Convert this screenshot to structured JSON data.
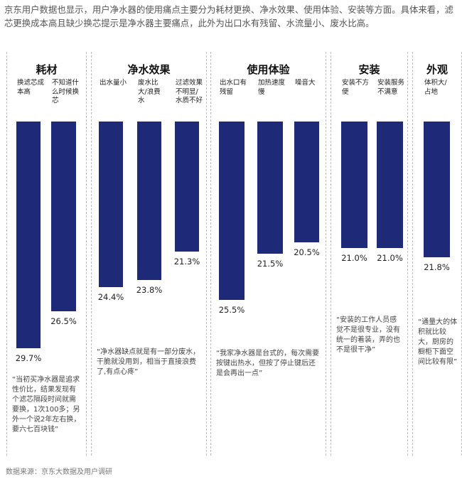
{
  "intro": "京东用户数据也显示，用户净水器的使用痛点主要分为耗材更换、净水效果、使用体验、安装等方面。具体来看，滤芯更换成本高且缺少换芯提示是净水器主要痛点，此外为出口水有残留、水流量小、废水比高。",
  "source": "数据来源：京东大数据及用户调研",
  "colors": {
    "bar": "#1e2a78",
    "frame": "#bdbdbd"
  },
  "chart_data": {
    "type": "bar",
    "groups": [
      {
        "title": "耗材",
        "bars": [
          {
            "label": "换滤芯成本高",
            "value": 29.7
          },
          {
            "label": "不知道什么时候换芯",
            "value": 26.5
          }
        ],
        "quote": "“当初买净水器是追求性价比，结果发现有个滤芯隔段时间就需要换，1次100多；另外一个说2年左右换，要六七百块钱”"
      },
      {
        "title": "净水效果",
        "bars": [
          {
            "label": "出水量小",
            "value": 24.4
          },
          {
            "label": "废水比大/浪费水",
            "value": 23.8
          },
          {
            "label": "过滤效果不明显/水质不好",
            "value": 21.3
          }
        ],
        "quote": "“净水器缺点就是有一部分废水，干脆就没用到，相当于直接浪费了,有点心疼”"
      },
      {
        "title": "使用体验",
        "bars": [
          {
            "label": "出水口有残留",
            "value": 25.5
          },
          {
            "label": "加热速度慢",
            "value": 21.5
          },
          {
            "label": "噪音大",
            "value": 20.5
          }
        ],
        "quote": "“我家净水器是台式的，每次需要按键出热水，但按了停止键后还是会再出一点”"
      },
      {
        "title": "安装",
        "bars": [
          {
            "label": "安装不方便",
            "value": 21.0
          },
          {
            "label": "安装服务不满意",
            "value": 21.0
          }
        ],
        "quote": "“安装的工作人员感觉不是很专业，没有统一的着装，弄的也不是很干净”"
      },
      {
        "title": "外观",
        "bars": [
          {
            "label": "体积大/占地",
            "value": 21.8
          }
        ],
        "quote": "“通量大的体积就比较大，厨房的橱柜下面空间比较有限”"
      }
    ],
    "value_suffix": "%"
  }
}
